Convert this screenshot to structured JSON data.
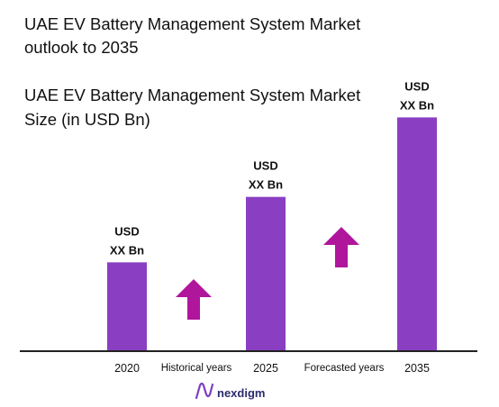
{
  "header": {
    "title_line1": "UAE EV Battery Management System Market",
    "title_line2": "outlook to 2035",
    "subtitle_line1": "UAE EV Battery Management System Market",
    "subtitle_line2": "Size (in USD Bn)"
  },
  "chart_data": {
    "type": "bar",
    "title": "UAE EV Battery Management System Market outlook to 2035",
    "subtitle": "UAE EV Battery Management System Market Size (in USD Bn)",
    "categories": [
      "2020",
      "2025",
      "2035"
    ],
    "values": [
      0.95,
      1.65,
      2.5
    ],
    "data_labels": [
      [
        "USD",
        "XX Bn"
      ],
      [
        "USD",
        "XX Bn"
      ],
      [
        "USD",
        "XX Bn"
      ]
    ],
    "ylim": [
      0,
      2.6
    ],
    "bar_color": "#8a3fc2",
    "arrow_color": "#b0169c",
    "period_labels": [
      "Historical years",
      "Forecasted years"
    ]
  },
  "footer": {
    "brand": "nexdigm"
  }
}
